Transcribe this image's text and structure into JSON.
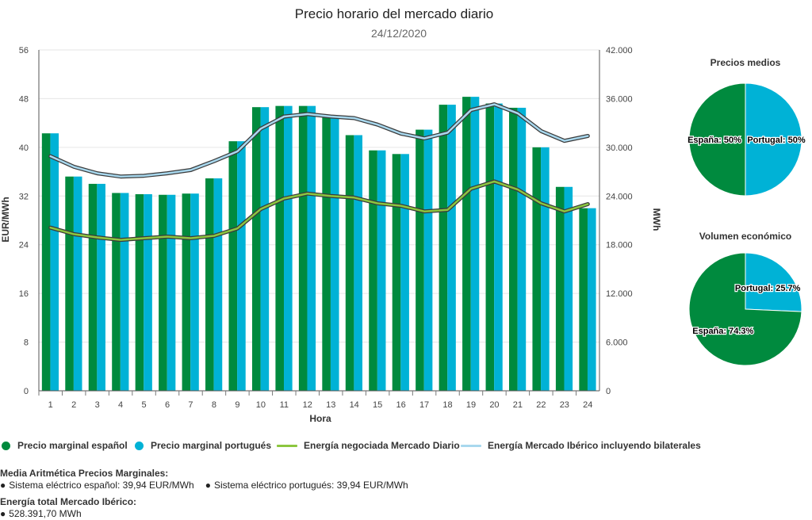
{
  "chart_data": [
    {
      "type": "bar+line",
      "title": "Precio horario del mercado diario",
      "subtitle": "24/12/2020",
      "xlabel": "Hora",
      "ylabel_left": "EUR/MWh",
      "ylabel_right": "MWh",
      "ylim_left": [
        0,
        56
      ],
      "ylim_right": [
        0,
        42000
      ],
      "yticks_left": [
        "0",
        "8",
        "16",
        "24",
        "32",
        "40",
        "48",
        "56"
      ],
      "yticks_right": [
        "0",
        "6.000",
        "12.000",
        "18.000",
        "24.000",
        "30.000",
        "36.000",
        "42.000"
      ],
      "categories": [
        "1",
        "2",
        "3",
        "4",
        "5",
        "6",
        "7",
        "8",
        "9",
        "10",
        "11",
        "12",
        "13",
        "14",
        "15",
        "16",
        "17",
        "18",
        "19",
        "20",
        "21",
        "22",
        "23",
        "24"
      ],
      "grid": "horizontal",
      "legend_position": "bottom",
      "bar_series": [
        {
          "name": "Precio marginal español",
          "color": "#008a3e",
          "values": [
            42.3,
            35.2,
            34.0,
            32.5,
            32.3,
            32.2,
            32.4,
            34.9,
            41.0,
            46.6,
            46.8,
            46.8,
            44.9,
            42.0,
            39.5,
            38.9,
            42.9,
            47.0,
            48.3,
            47.2,
            46.5,
            40.0,
            33.5,
            30.0
          ]
        },
        {
          "name": "Precio marginal portugués",
          "color": "#00b2d6",
          "values": [
            42.3,
            35.2,
            34.0,
            32.5,
            32.3,
            32.2,
            32.4,
            34.9,
            41.0,
            46.6,
            46.8,
            46.8,
            44.9,
            42.0,
            39.5,
            38.9,
            42.9,
            47.0,
            48.3,
            47.2,
            46.5,
            40.0,
            33.5,
            30.0
          ]
        }
      ],
      "line_series": [
        {
          "name": "Energía negociada Mercado Diario",
          "color": "#8cc63f",
          "values": [
            20100,
            19300,
            18900,
            18600,
            18800,
            19000,
            18800,
            19100,
            20000,
            22400,
            23700,
            24300,
            24000,
            23800,
            23100,
            22800,
            22100,
            22300,
            24900,
            25800,
            24800,
            23100,
            22100,
            23000
          ]
        },
        {
          "name": "Energía Mercado Ibérico incluyendo bilaterales",
          "color": "#a8d8ee",
          "values": [
            28900,
            27600,
            26800,
            26400,
            26500,
            26800,
            27200,
            28300,
            29500,
            32300,
            33800,
            34100,
            33800,
            33600,
            32800,
            31700,
            31100,
            31800,
            34600,
            35300,
            34200,
            32000,
            30800,
            31400
          ]
        }
      ]
    },
    {
      "type": "pie",
      "title": "Precios medios",
      "slices": [
        {
          "label": "Portugal",
          "value": 50,
          "display": "Portugal: 50%",
          "color": "#00b2d6"
        },
        {
          "label": "España",
          "value": 50,
          "display": "España: 50%",
          "color": "#008a3e"
        }
      ]
    },
    {
      "type": "pie",
      "title": "Volumen económico",
      "slices": [
        {
          "label": "Portugal",
          "value": 25.7,
          "display": "Portugal: 25.7%",
          "color": "#00b2d6"
        },
        {
          "label": "España",
          "value": 74.3,
          "display": "España: 74.3%",
          "color": "#008a3e"
        }
      ]
    }
  ],
  "legend": [
    {
      "label": "Precio marginal español",
      "kind": "dot",
      "color": "#008a3e"
    },
    {
      "label": "Precio marginal portugués",
      "kind": "dot",
      "color": "#00b2d6"
    },
    {
      "label": "Energía negociada Mercado Diario",
      "kind": "line",
      "color": "#8cc63f"
    },
    {
      "label": "Energía Mercado Ibérico incluyendo bilaterales",
      "kind": "line",
      "color": "#a8d8ee"
    }
  ],
  "stats": {
    "avg_heading": "Media Aritmética Precios Marginales:",
    "bullet": "●",
    "spain_text": "Sistema eléctrico español: 39,94 EUR/MWh",
    "portugal_text": "Sistema eléctrico portugués: 39,94 EUR/MWh",
    "energy_heading": "Energía total Mercado Ibérico:",
    "energy_text": "528.391,70 MWh"
  }
}
